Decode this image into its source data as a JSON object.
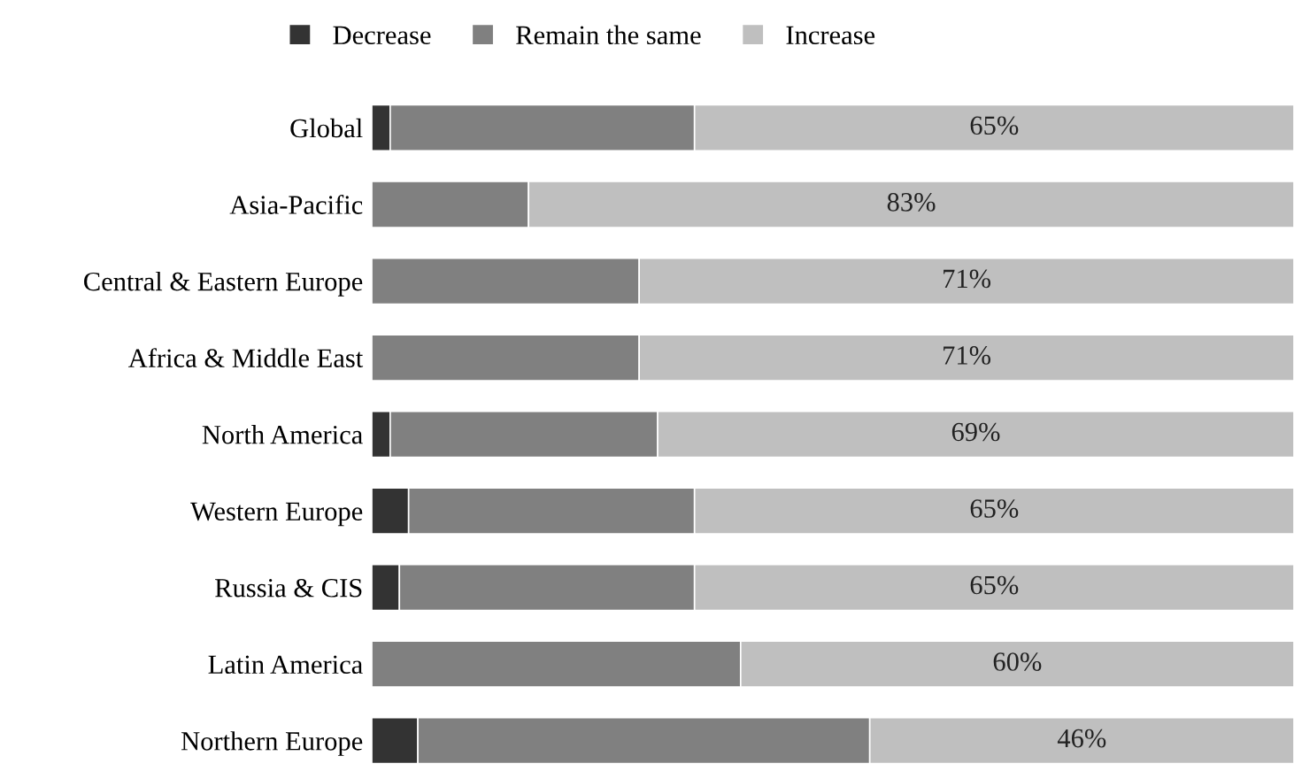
{
  "chart_data": {
    "type": "bar",
    "orientation": "horizontal",
    "stacked": true,
    "legend": "top",
    "grid": false,
    "categories": [
      "Global",
      "Asia-Pacific",
      "Central & Eastern Europe",
      "Africa & Middle East",
      "North America",
      "Western Europe",
      "Russia & CIS",
      "Latin America",
      "Northern Europe"
    ],
    "xlim": [
      0,
      100
    ],
    "series": [
      {
        "name": "Decrease",
        "color": "#333333",
        "values": [
          2,
          0,
          0,
          0,
          2,
          4,
          3,
          0,
          5
        ]
      },
      {
        "name": "Remain the same",
        "color": "#808080",
        "values": [
          33,
          17,
          29,
          29,
          29,
          31,
          32,
          40,
          49
        ]
      },
      {
        "name": "Increase",
        "color": "#bfbfbf",
        "values": [
          65,
          83,
          71,
          71,
          69,
          65,
          65,
          60,
          46
        ],
        "value_labels": [
          "65%",
          "83%",
          "71%",
          "71%",
          "69%",
          "65%",
          "65%",
          "60%",
          "46%"
        ]
      }
    ]
  }
}
